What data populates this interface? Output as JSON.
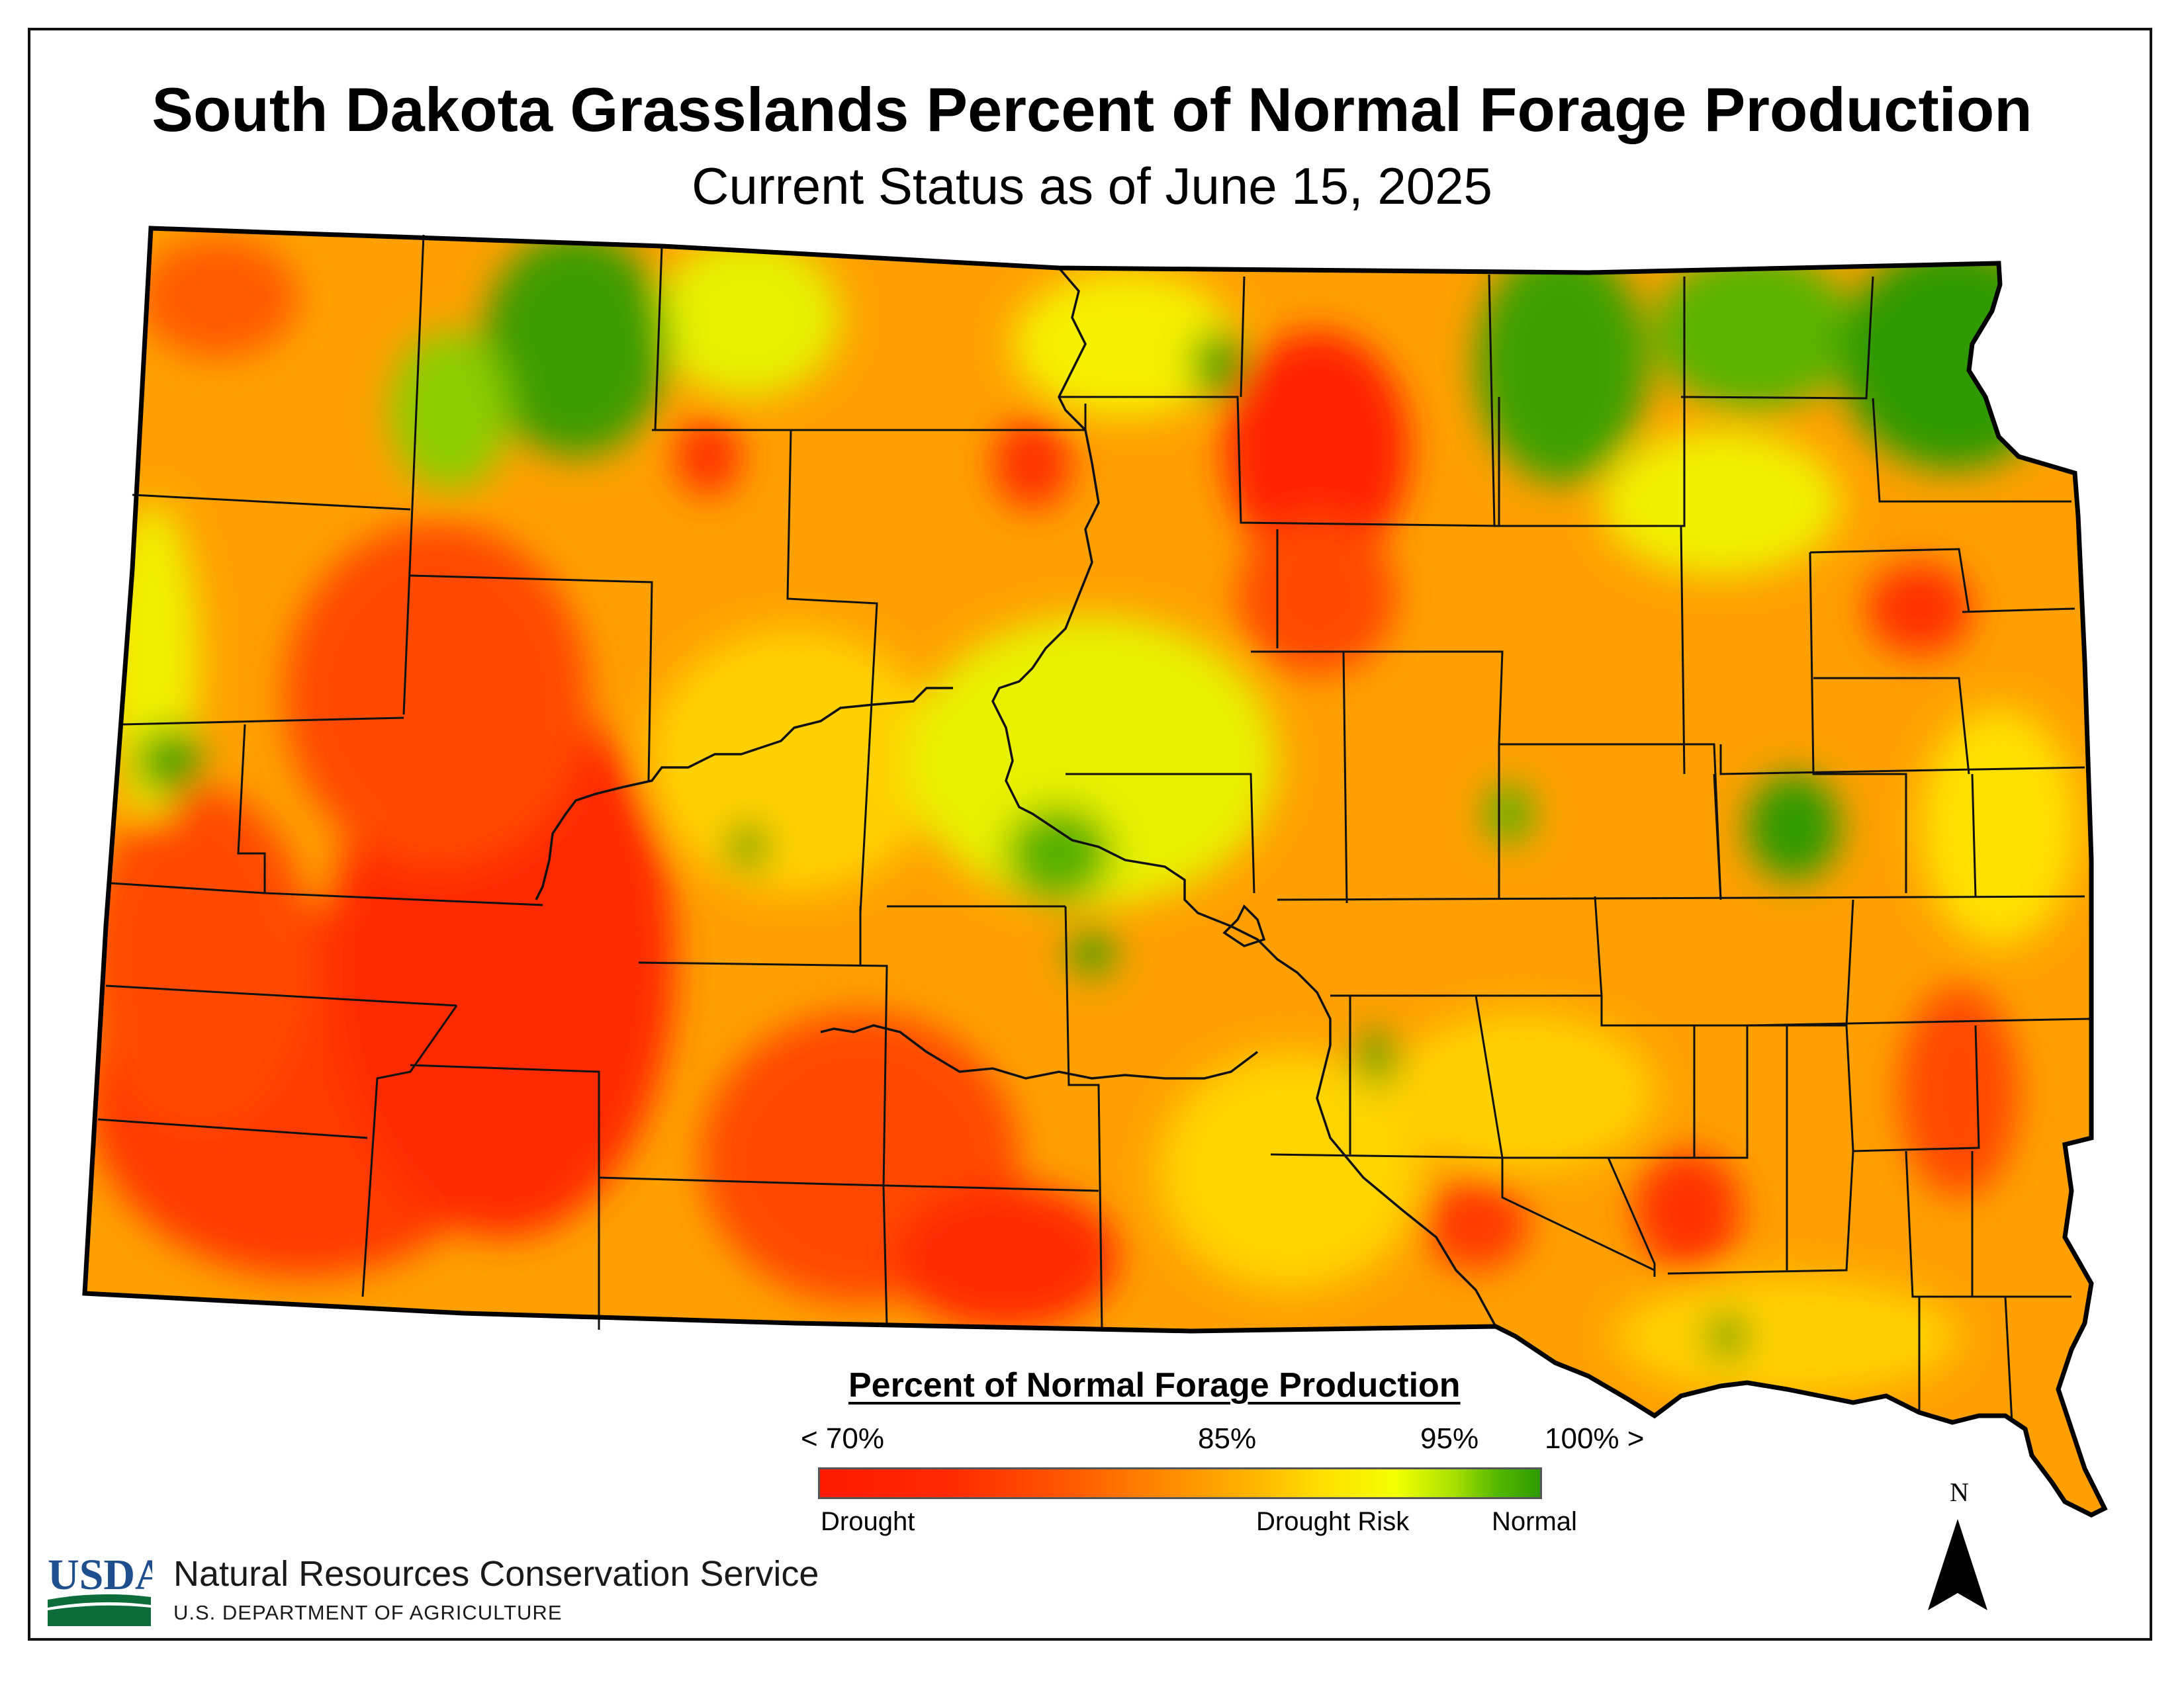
{
  "title": "South Dakota Grasslands Percent of Normal Forage Production",
  "subtitle": "Current Status as of June 15, 2025",
  "legend": {
    "title": "Percent of Normal Forage Production",
    "ticks": [
      "< 70%",
      "85%",
      "95%",
      "100% >"
    ],
    "captions": [
      "Drought",
      "Drought Risk",
      "Normal"
    ],
    "colors": {
      "drought": "#ff1a00",
      "severe": "#ff5a00",
      "moderate": "#ffb400",
      "risk": "#f3ff00",
      "near_normal": "#8fd000",
      "normal": "#2e9a00"
    }
  },
  "footer": {
    "agency_logo_text": "USDA",
    "agency_name": "Natural Resources Conservation Service",
    "department": "U.S. DEPARTMENT OF AGRICULTURE"
  },
  "north_arrow": {
    "label": "N",
    "icon": "north-arrow-icon"
  }
}
